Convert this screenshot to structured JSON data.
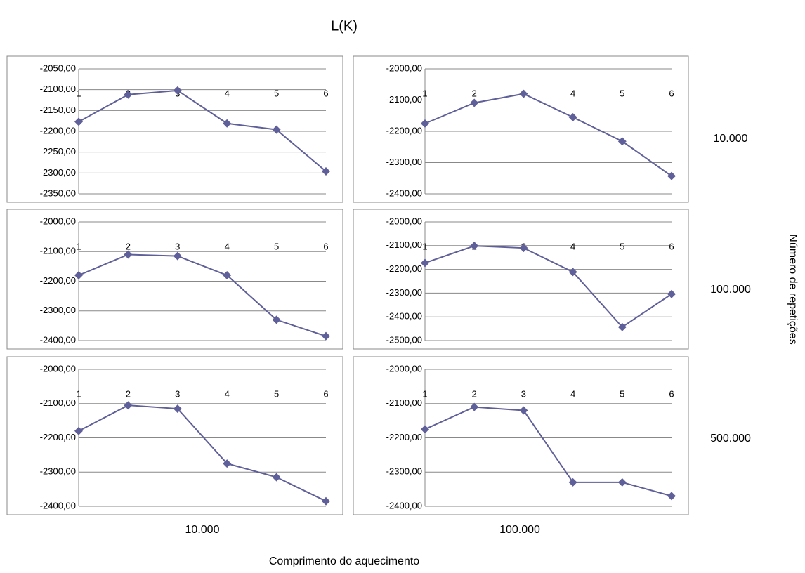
{
  "figure": {
    "title": "L(K)",
    "x_label": "Comprimento do aquecimento",
    "y_label": "Número de repetições",
    "column_labels": [
      "10.000",
      "100.000"
    ],
    "row_labels": [
      "10.000",
      "100.000",
      "500.000"
    ]
  },
  "chart_data": [
    {
      "type": "line",
      "categories": [
        "1",
        "2",
        "3",
        "4",
        "5",
        "6"
      ],
      "values": [
        -2177,
        -2112,
        -2102,
        -2181,
        -2196,
        -2296
      ],
      "color": "#5f5f99",
      "ylim": [
        -2350,
        -2050
      ],
      "yticks": [
        {
          "value": -2050,
          "label": "-2050,00"
        },
        {
          "value": -2100,
          "label": "-2100,00"
        },
        {
          "value": -2150,
          "label": "-2150,00"
        },
        {
          "value": -2200,
          "label": "-2200,00"
        },
        {
          "value": -2250,
          "label": "-2250,00"
        },
        {
          "value": -2300,
          "label": "-2300,00"
        },
        {
          "value": -2350,
          "label": "-2350,00"
        }
      ],
      "grid": true
    },
    {
      "type": "line",
      "categories": [
        "1",
        "2",
        "3",
        "4",
        "5",
        "6"
      ],
      "values": [
        -2175,
        -2109,
        -2080,
        -2155,
        -2232,
        -2343
      ],
      "color": "#5f5f99",
      "ylim": [
        -2400,
        -2000
      ],
      "yticks": [
        {
          "value": -2000,
          "label": "-2000,00"
        },
        {
          "value": -2100,
          "label": "-2100,00"
        },
        {
          "value": -2200,
          "label": "-2200,00"
        },
        {
          "value": -2300,
          "label": "-2300,00"
        },
        {
          "value": -2400,
          "label": "-2400,00"
        }
      ],
      "grid": true
    },
    {
      "type": "line",
      "categories": [
        "1",
        "2",
        "3",
        "4",
        "5",
        "6"
      ],
      "values": [
        -2180,
        -2110,
        -2115,
        -2180,
        -2330,
        -2385
      ],
      "color": "#5f5f99",
      "ylim": [
        -2400,
        -2000
      ],
      "yticks": [
        {
          "value": -2000,
          "label": "-2000,00"
        },
        {
          "value": -2100,
          "label": "-2100,00"
        },
        {
          "value": -2200,
          "label": "-2200,00"
        },
        {
          "value": -2300,
          "label": "-2300,00"
        },
        {
          "value": -2400,
          "label": "-2400,00"
        }
      ],
      "grid": true
    },
    {
      "type": "line",
      "categories": [
        "1",
        "2",
        "3",
        "4",
        "5",
        "6"
      ],
      "values": [
        -2173,
        -2101,
        -2110,
        -2211,
        -2443,
        -2304
      ],
      "color": "#5f5f99",
      "ylim": [
        -2500,
        -2000
      ],
      "yticks": [
        {
          "value": -2000,
          "label": "-2000,00"
        },
        {
          "value": -2100,
          "label": "-2100,00"
        },
        {
          "value": -2200,
          "label": "-2200,00"
        },
        {
          "value": -2300,
          "label": "-2300,00"
        },
        {
          "value": -2400,
          "label": "-2400,00"
        },
        {
          "value": -2500,
          "label": "-2500,00"
        }
      ],
      "grid": true
    },
    {
      "type": "line",
      "categories": [
        "1",
        "2",
        "3",
        "4",
        "5",
        "6"
      ],
      "values": [
        -2180,
        -2105,
        -2115,
        -2275,
        -2315,
        -2385
      ],
      "color": "#5f5f99",
      "ylim": [
        -2400,
        -2000
      ],
      "yticks": [
        {
          "value": -2000,
          "label": "-2000,00"
        },
        {
          "value": -2100,
          "label": "-2100,00"
        },
        {
          "value": -2200,
          "label": "-2200,00"
        },
        {
          "value": -2300,
          "label": "-2300,00"
        },
        {
          "value": -2400,
          "label": "-2400,00"
        }
      ],
      "grid": true
    },
    {
      "type": "line",
      "categories": [
        "1",
        "2",
        "3",
        "4",
        "5",
        "6"
      ],
      "values": [
        -2175,
        -2110,
        -2120,
        -2330,
        -2330,
        -2370
      ],
      "color": "#5f5f99",
      "ylim": [
        -2400,
        -2000
      ],
      "yticks": [
        {
          "value": -2000,
          "label": "-2000,00"
        },
        {
          "value": -2100,
          "label": "-2100,00"
        },
        {
          "value": -2200,
          "label": "-2200,00"
        },
        {
          "value": -2300,
          "label": "-2300,00"
        },
        {
          "value": -2400,
          "label": "-2400,00"
        }
      ],
      "grid": true
    }
  ]
}
